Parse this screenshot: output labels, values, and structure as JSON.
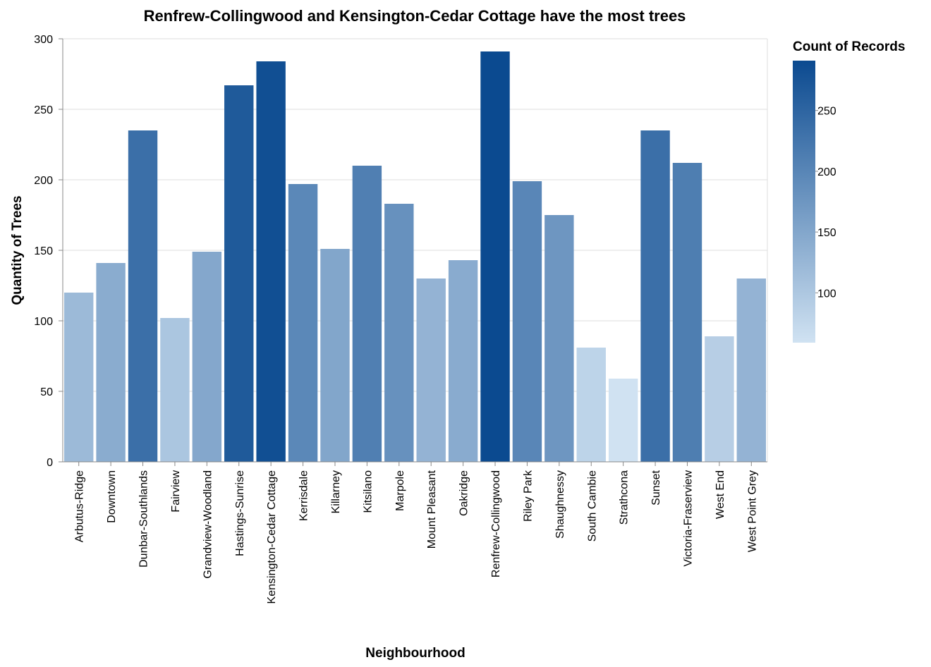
{
  "chart_data": {
    "type": "bar",
    "title": "Renfrew-Collingwood and Kensington-Cedar Cottage have the most trees",
    "xlabel": "Neighbourhood",
    "ylabel": "Quantity of Trees",
    "ylim": [
      0,
      300
    ],
    "yticks": [
      0,
      50,
      100,
      150,
      200,
      250,
      300
    ],
    "grid": true,
    "categories": [
      "Arbutus-Ridge",
      "Downtown",
      "Dunbar-Southlands",
      "Fairview",
      "Grandview-Woodland",
      "Hastings-Sunrise",
      "Kensington-Cedar Cottage",
      "Kerrisdale",
      "Killarney",
      "Kitsilano",
      "Marpole",
      "Mount Pleasant",
      "Oakridge",
      "Renfrew-Collingwood",
      "Riley Park",
      "Shaughnessy",
      "South Cambie",
      "Strathcona",
      "Sunset",
      "Victoria-Fraserview",
      "West End",
      "West Point Grey"
    ],
    "values": [
      120,
      141,
      235,
      102,
      149,
      267,
      284,
      197,
      151,
      210,
      183,
      130,
      143,
      291,
      199,
      175,
      81,
      59,
      235,
      212,
      89,
      130
    ],
    "legend": {
      "title": "Count of Records",
      "placement": "right",
      "domain": [
        59,
        291
      ],
      "ticks": [
        100,
        150,
        200,
        250
      ],
      "color_low": "#d0e2f2",
      "color_high": "#0b4a90"
    }
  }
}
